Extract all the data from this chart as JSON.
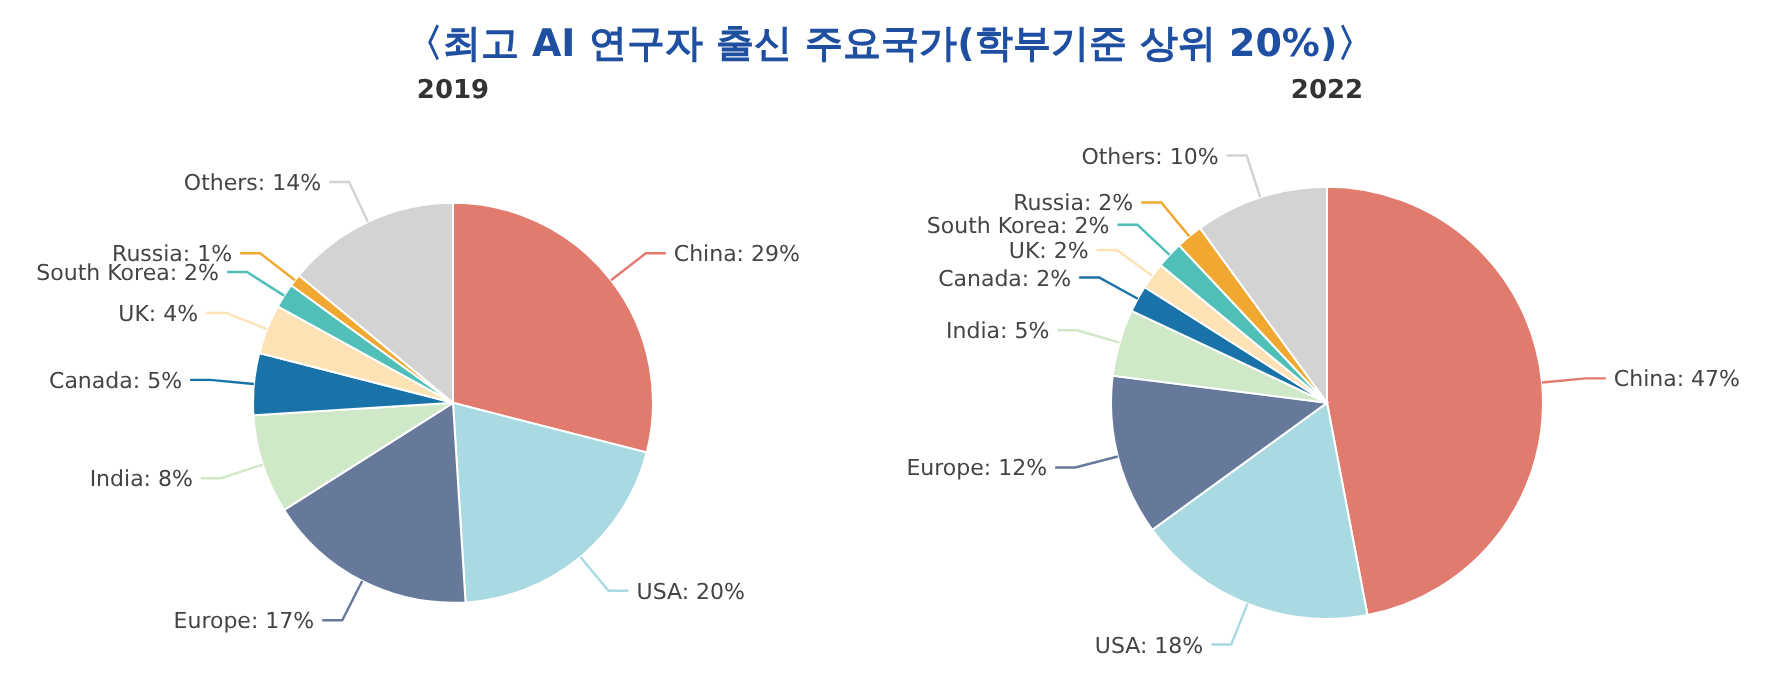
{
  "chart_data": [
    {
      "type": "pie",
      "title": "〈최고 AI 연구자 출신 주요국가(학부기준 상위 20%)〉",
      "subtitle": "2019",
      "categories": [
        "China",
        "USA",
        "Europe",
        "India",
        "Canada",
        "UK",
        "South Korea",
        "Russia",
        "Others"
      ],
      "values": [
        29,
        20,
        17,
        8,
        5,
        4,
        2,
        1,
        14
      ],
      "value_labels": [
        "29%",
        "20%",
        "17%",
        "8%",
        "5%",
        "4%",
        "2%",
        "1%",
        "14%"
      ],
      "colors": [
        "#e07b6e",
        "#a9d9e1",
        "#66799a",
        "#cfe8c8",
        "#1a73a8",
        "#fde2b5",
        "#4fbfb8",
        "#f0a830",
        "#d3d3d3"
      ]
    },
    {
      "type": "pie",
      "subtitle": "2022",
      "categories": [
        "China",
        "USA",
        "Europe",
        "India",
        "Canada",
        "UK",
        "South Korea",
        "Russia",
        "Others"
      ],
      "values": [
        47,
        18,
        12,
        5,
        2,
        2,
        2,
        2,
        10
      ],
      "value_labels": [
        "47%",
        "18%",
        "12%",
        "5%",
        "2%",
        "2%",
        "2%",
        "2%",
        "10%"
      ],
      "colors": [
        "#e07b6e",
        "#a9d9e1",
        "#66799a",
        "#cfe8c8",
        "#1a73a8",
        "#fde2b5",
        "#4fbfb8",
        "#f0a830",
        "#d3d3d3"
      ]
    }
  ]
}
